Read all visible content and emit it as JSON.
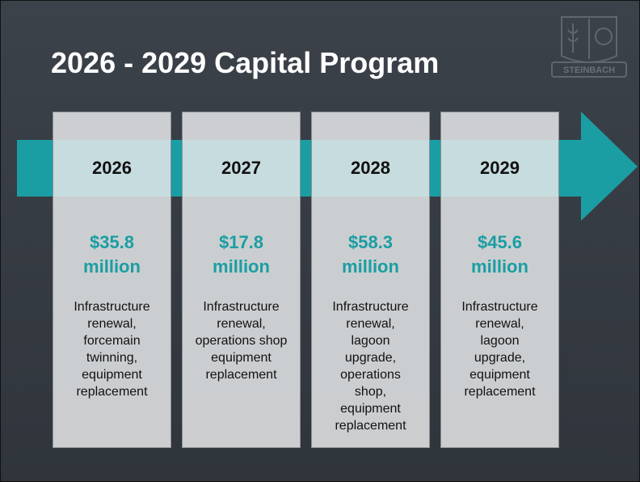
{
  "title": "2026 - 2029 Capital Program",
  "logo": "STEINBACH",
  "columns": [
    {
      "year": "2026",
      "amount": "$35.8",
      "unit": "million",
      "description": [
        "Infrastructure",
        "renewal,",
        "forcemain",
        "twinning,",
        "equipment",
        "replacement"
      ]
    },
    {
      "year": "2027",
      "amount": "$17.8",
      "unit": "million",
      "description": [
        "Infrastructure",
        "renewal,",
        "operations shop",
        "equipment",
        "replacement"
      ]
    },
    {
      "year": "2028",
      "amount": "$58.3",
      "unit": "million",
      "description": [
        "Infrastructure",
        "renewal,",
        "lagoon",
        "upgrade,",
        "operations",
        "shop,",
        "equipment",
        "replacement"
      ]
    },
    {
      "year": "2029",
      "amount": "$45.6",
      "unit": "million",
      "description": [
        "Infrastructure",
        "renewal,",
        "lagoon",
        "upgrade,",
        "equipment",
        "replacement"
      ]
    }
  ]
}
